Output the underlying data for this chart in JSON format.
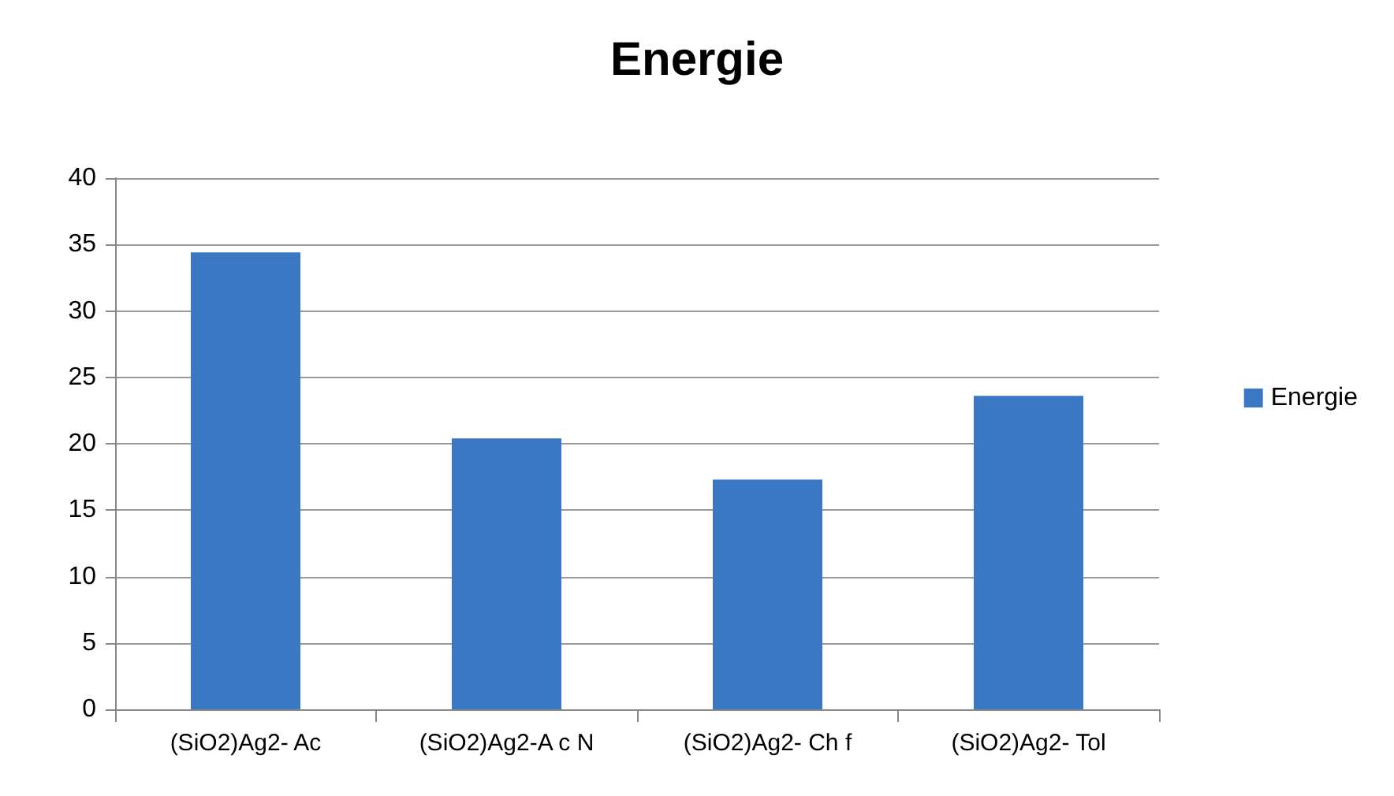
{
  "chart_data": {
    "type": "bar",
    "title": "Energie",
    "categories": [
      "(SiO2)Ag2- Ac",
      "(SiO2)Ag2-A c N",
      "(SiO2)Ag2- Ch f",
      "(SiO2)Ag2- Tol"
    ],
    "series": [
      {
        "name": "Energie",
        "color": "#3b78c4",
        "values": [
          34.4,
          20.4,
          17.3,
          23.6
        ]
      }
    ],
    "ylim": [
      0,
      40
    ],
    "yticks": [
      0,
      5,
      10,
      15,
      20,
      25,
      30,
      35,
      40
    ],
    "grid": "y",
    "legend": "right"
  }
}
